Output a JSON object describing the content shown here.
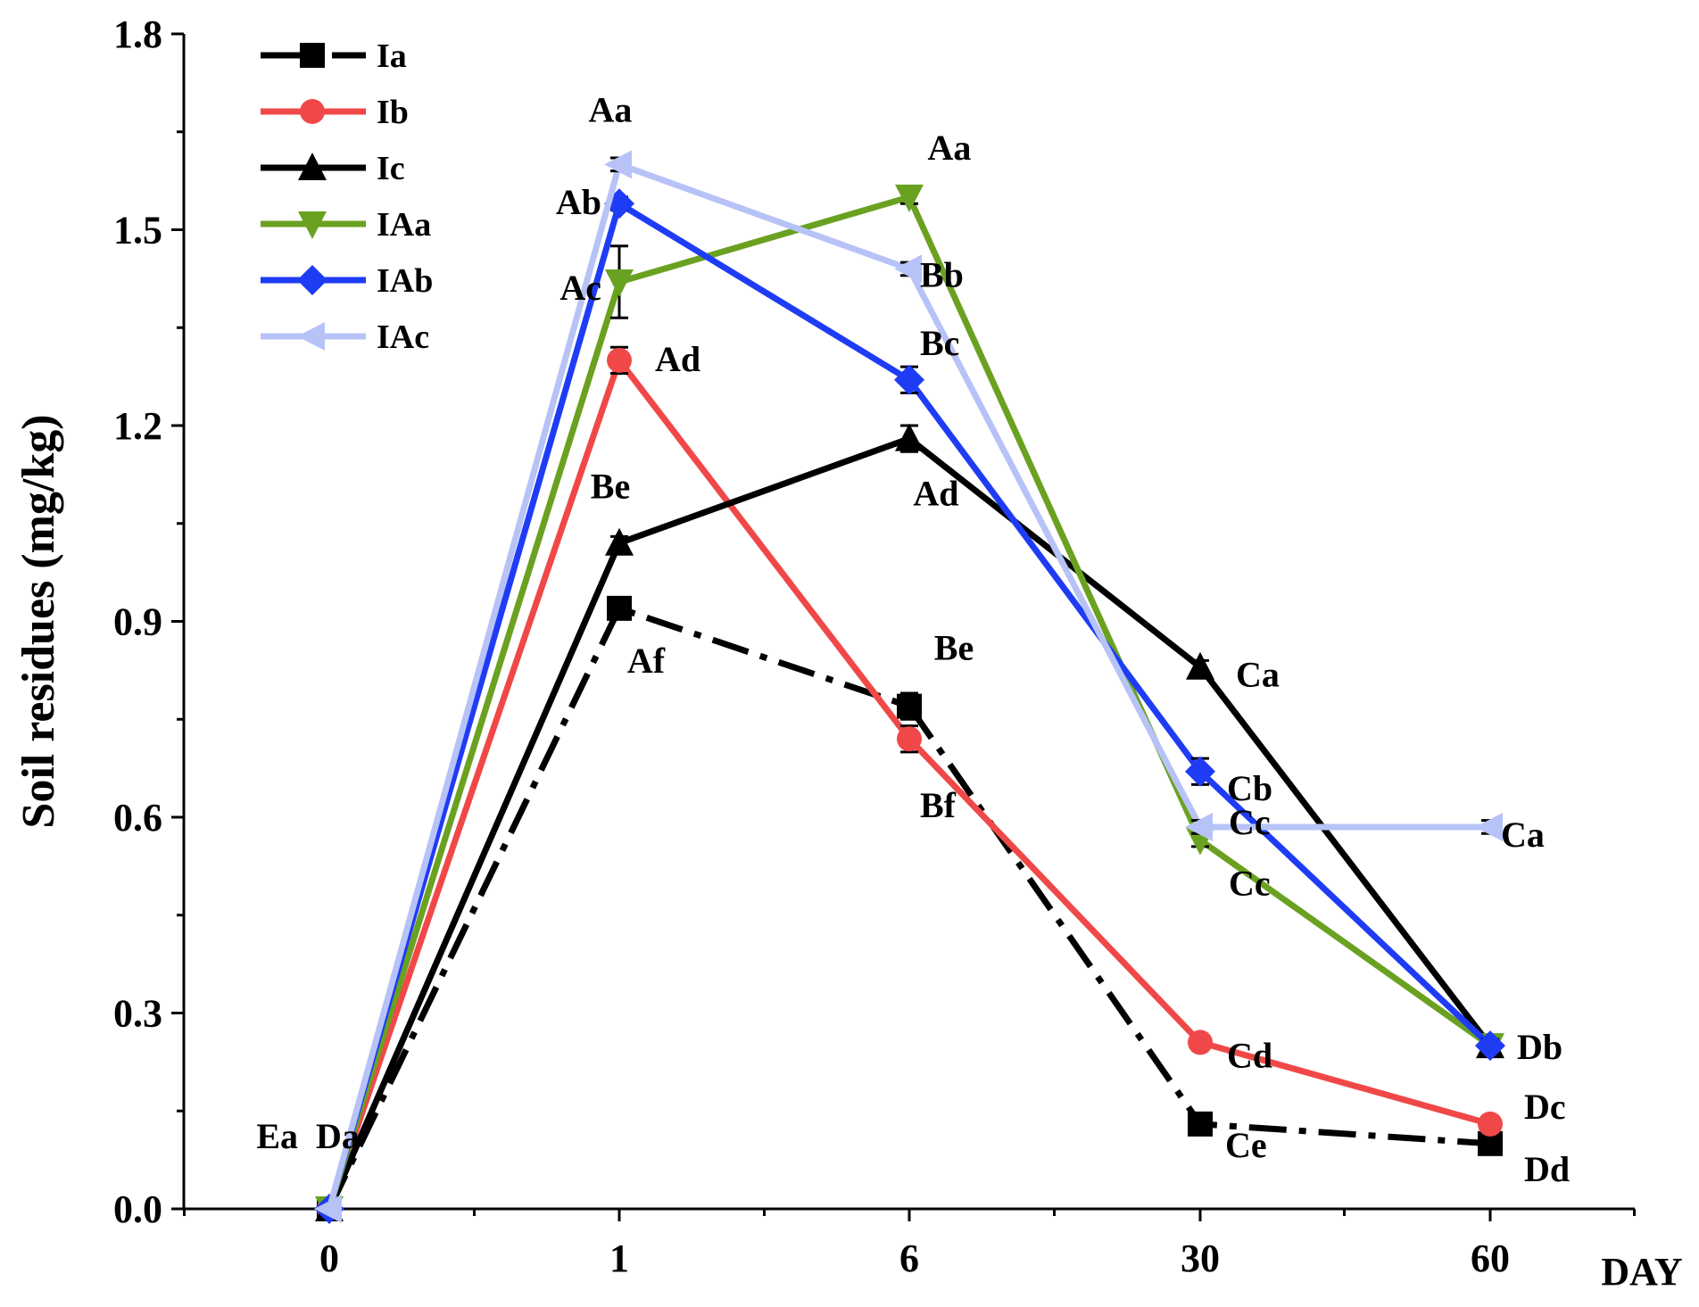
{
  "chart_data": {
    "type": "line",
    "xlabel": "DAY",
    "ylabel": "Soil residues (mg/kg)",
    "categories": [
      "0",
      "1",
      "6",
      "30",
      "60"
    ],
    "ylim": [
      0,
      1.8
    ],
    "yticks": [
      "0.0",
      "0.3",
      "0.6",
      "0.9",
      "1.2",
      "1.5",
      "1.8"
    ],
    "legend_position": "top-left",
    "series": [
      {
        "name": "Ia",
        "color": "#000000",
        "marker": "square",
        "dash": "dashdot",
        "values": [
          0.0,
          0.92,
          0.77,
          0.13,
          0.1
        ],
        "errors": [
          0,
          0.01,
          0.02,
          0.01,
          0.01
        ]
      },
      {
        "name": "Ib",
        "color": "#f04848",
        "marker": "circle",
        "dash": "solid",
        "values": [
          0.0,
          1.3,
          0.72,
          0.255,
          0.13
        ],
        "errors": [
          0,
          0.02,
          0.02,
          0.01,
          0.01
        ]
      },
      {
        "name": "Ic",
        "color": "#000000",
        "marker": "triangle-up",
        "dash": "solid",
        "values": [
          0.0,
          1.02,
          1.18,
          0.83,
          0.25
        ],
        "errors": [
          0,
          0.01,
          0.02,
          0.01,
          0.01
        ]
      },
      {
        "name": "IAa",
        "color": "#6aa121",
        "marker": "triangle-down",
        "dash": "solid",
        "values": [
          0.0,
          1.42,
          1.55,
          0.565,
          0.25
        ],
        "errors": [
          0,
          0.055,
          0.01,
          0.01,
          0.01
        ]
      },
      {
        "name": "IAb",
        "color": "#1f3cf5",
        "marker": "diamond",
        "dash": "solid",
        "values": [
          0.0,
          1.54,
          1.27,
          0.67,
          0.25
        ],
        "errors": [
          0,
          0.01,
          0.02,
          0.02,
          0.01
        ]
      },
      {
        "name": "IAc",
        "color": "#b7c3f7",
        "marker": "triangle-left",
        "dash": "solid",
        "values": [
          0.0,
          1.6,
          1.44,
          0.585,
          0.585
        ],
        "errors": [
          0,
          0.01,
          0.01,
          0.01,
          0.01
        ]
      }
    ],
    "annotations": [
      {
        "text": "Ea",
        "x": "0",
        "y": 0.0
      },
      {
        "text": "Da",
        "x": "0",
        "y": 0.0
      },
      {
        "text": "Aa",
        "x": "1",
        "y": 1.6
      },
      {
        "text": "Ab",
        "x": "1",
        "y": 1.54
      },
      {
        "text": "Ac",
        "x": "1",
        "y": 1.42
      },
      {
        "text": "Ad",
        "x": "1",
        "y": 1.3
      },
      {
        "text": "Be",
        "x": "1",
        "y": 1.02
      },
      {
        "text": "Af",
        "x": "1",
        "y": 0.92
      },
      {
        "text": "Aa",
        "x": "6",
        "y": 1.55
      },
      {
        "text": "Bb",
        "x": "6",
        "y": 1.44
      },
      {
        "text": "Bc",
        "x": "6",
        "y": 1.27
      },
      {
        "text": "Ad",
        "x": "6",
        "y": 1.18
      },
      {
        "text": "Be",
        "x": "6",
        "y": 0.77
      },
      {
        "text": "Bf",
        "x": "6",
        "y": 0.72
      },
      {
        "text": "Ca",
        "x": "30",
        "y": 0.83
      },
      {
        "text": "Cb",
        "x": "30",
        "y": 0.67
      },
      {
        "text": "Cc",
        "x": "30",
        "y": 0.585
      },
      {
        "text": "Cc",
        "x": "30",
        "y": 0.565
      },
      {
        "text": "Cd",
        "x": "30",
        "y": 0.255
      },
      {
        "text": "Ce",
        "x": "30",
        "y": 0.13
      },
      {
        "text": "Ca",
        "x": "60",
        "y": 0.585
      },
      {
        "text": "Db",
        "x": "60",
        "y": 0.25
      },
      {
        "text": "Dc",
        "x": "60",
        "y": 0.13
      },
      {
        "text": "Dd",
        "x": "60",
        "y": 0.1
      }
    ]
  }
}
